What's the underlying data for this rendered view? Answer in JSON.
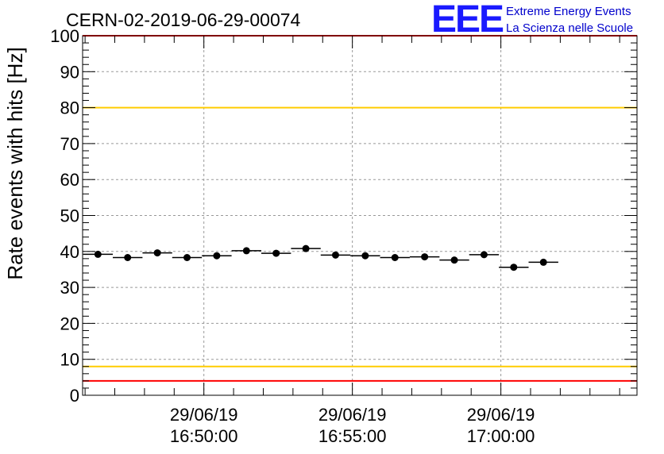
{
  "chart_data": {
    "type": "scatter",
    "title": "CERN-02-2019-06-29-00074",
    "ylabel": "Rate events with hits [Hz]",
    "xlabel": "",
    "ylim": [
      0,
      100
    ],
    "yticks": [
      0,
      10,
      20,
      30,
      40,
      50,
      60,
      70,
      80,
      90,
      100
    ],
    "xlim": [
      "16:45:55",
      "17:04:35"
    ],
    "xticks": [
      {
        "time": "16:50:00",
        "date": "29/06/19",
        "clock": "16:50:00"
      },
      {
        "time": "16:55:00",
        "date": "29/06/19",
        "clock": "16:55:00"
      },
      {
        "time": "17:00:00",
        "date": "29/06/19",
        "clock": "17:00:00"
      }
    ],
    "bin_width_seconds": 60,
    "points": [
      {
        "x": "16:46:26",
        "y": 39.2
      },
      {
        "x": "16:47:26",
        "y": 38.3
      },
      {
        "x": "16:48:26",
        "y": 39.6
      },
      {
        "x": "16:49:26",
        "y": 38.3
      },
      {
        "x": "16:50:26",
        "y": 38.8
      },
      {
        "x": "16:51:26",
        "y": 40.2
      },
      {
        "x": "16:52:26",
        "y": 39.5
      },
      {
        "x": "16:53:26",
        "y": 40.8
      },
      {
        "x": "16:54:26",
        "y": 39.0
      },
      {
        "x": "16:55:26",
        "y": 38.8
      },
      {
        "x": "16:56:26",
        "y": 38.3
      },
      {
        "x": "16:57:26",
        "y": 38.5
      },
      {
        "x": "16:58:26",
        "y": 37.6
      },
      {
        "x": "16:59:26",
        "y": 39.1
      },
      {
        "x": "17:00:26",
        "y": 35.6
      },
      {
        "x": "17:01:26",
        "y": 37.0
      }
    ],
    "reference_lines": [
      {
        "y": 100,
        "color": "#ff0000"
      },
      {
        "y": 80,
        "color": "#ffcc00"
      },
      {
        "y": 8,
        "color": "#ffcc00"
      },
      {
        "y": 4,
        "color": "#ff0000"
      }
    ],
    "grid": true
  },
  "logo": {
    "mark": "EEE",
    "line1": "Extreme Energy Events",
    "line2": "La Scienza nelle Scuole",
    "color": "#0000cc"
  }
}
